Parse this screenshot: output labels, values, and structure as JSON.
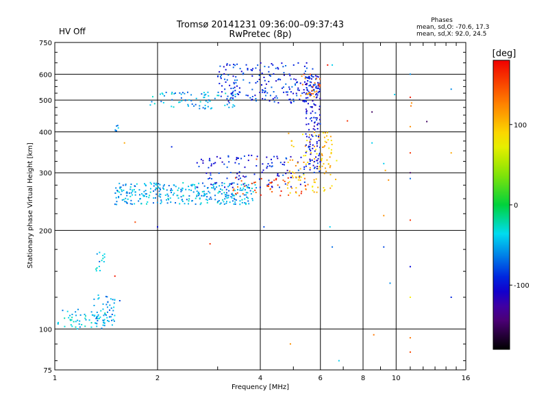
{
  "status": {
    "text": "HV Off",
    "color": "#d00000"
  },
  "stats": {
    "title": "Phases",
    "line1": "mean, sd,O: -70.6, 17.3",
    "line2": "mean, sd,X:  92.0, 24.5"
  },
  "chart_data": {
    "type": "scatter",
    "title": "Tromsø 20141231 09:36:00–09:37:43",
    "subtitle": "RwPretec (8p)",
    "xlabel": "Frequency [MHz]",
    "ylabel": "Stationary phase Virtual Height [km]",
    "x_scale": "log",
    "y_scale": "log",
    "xlim": [
      1,
      16
    ],
    "ylim": [
      75,
      750
    ],
    "x_ticks": [
      1,
      2,
      4,
      6,
      8,
      10,
      16
    ],
    "y_ticks": [
      75,
      100,
      200,
      300,
      400,
      500,
      600,
      750
    ],
    "grid": true,
    "colorbar": {
      "label": "[deg]",
      "range": [
        -180,
        180
      ],
      "ticks": [
        100,
        0,
        -100
      ]
    },
    "series": [
      {
        "x_range": [
          1.02,
          1.5
        ],
        "y_range": [
          100,
          115
        ],
        "phase": -45,
        "count": 70
      },
      {
        "x_range": [
          1.28,
          1.5
        ],
        "y_range": [
          105,
          128
        ],
        "phase": -55,
        "count": 35
      },
      {
        "x_range": [
          1.32,
          1.4
        ],
        "y_range": [
          150,
          175
        ],
        "phase": -50,
        "count": 14
      },
      {
        "x_range": [
          1.5,
          1.56
        ],
        "y_range": [
          400,
          420
        ],
        "phase": -45,
        "count": 6
      },
      {
        "x_range": [
          1.5,
          3.9
        ],
        "y_range": [
          240,
          280
        ],
        "phase": -50,
        "count": 320
      },
      {
        "x_range": [
          2.6,
          5.4
        ],
        "y_range": [
          270,
          340
        ],
        "phase": -95,
        "count": 120
      },
      {
        "x_range": [
          3.3,
          5.6
        ],
        "y_range": [
          255,
          290
        ],
        "phase": 150,
        "count": 45
      },
      {
        "x_range": [
          4.8,
          6.7
        ],
        "y_range": [
          260,
          400
        ],
        "phase": 100,
        "count": 110
      },
      {
        "x_range": [
          5.4,
          6.0
        ],
        "y_range": [
          300,
          600
        ],
        "phase": -100,
        "count": 150
      },
      {
        "x_range": [
          1.9,
          3.4
        ],
        "y_range": [
          470,
          530
        ],
        "phase": -50,
        "count": 80
      },
      {
        "x_range": [
          3.0,
          5.9
        ],
        "y_range": [
          490,
          650
        ],
        "phase": -90,
        "count": 200
      },
      {
        "x_range": [
          5.2,
          6.0
        ],
        "y_range": [
          500,
          600
        ],
        "phase": 130,
        "count": 25
      },
      {
        "points": [
          [
            1.6,
            370,
            110
          ],
          [
            1.72,
            212,
            150
          ],
          [
            2.0,
            205,
            -100
          ],
          [
            2.2,
            360,
            -90
          ],
          [
            2.85,
            182,
            160
          ],
          [
            1.5,
            145,
            170
          ],
          [
            1.55,
            122,
            -80
          ],
          [
            4.1,
            205,
            -80
          ],
          [
            6.4,
            205,
            -40
          ],
          [
            6.5,
            178,
            -70
          ],
          [
            7.2,
            432,
            160
          ],
          [
            6.8,
            80,
            -40
          ],
          [
            6.5,
            640,
            -40
          ],
          [
            6.3,
            640,
            170
          ],
          [
            8.5,
            460,
            -150
          ],
          [
            8.5,
            370,
            -40
          ],
          [
            8.6,
            96,
            130
          ],
          [
            9.2,
            320,
            -40
          ],
          [
            9.3,
            305,
            110
          ],
          [
            9.5,
            285,
            120
          ],
          [
            9.2,
            222,
            120
          ],
          [
            9.2,
            178,
            -80
          ],
          [
            9.6,
            138,
            -60
          ],
          [
            9.9,
            520,
            -40
          ],
          [
            11.0,
            600,
            -60
          ],
          [
            11.0,
            510,
            170
          ],
          [
            11.1,
            490,
            120
          ],
          [
            11.05,
            480,
            130
          ],
          [
            11.0,
            415,
            120
          ],
          [
            11.0,
            345,
            160
          ],
          [
            11.0,
            300,
            -150
          ],
          [
            11.0,
            288,
            -70
          ],
          [
            11.0,
            215,
            160
          ],
          [
            11.0,
            155,
            -100
          ],
          [
            11.0,
            125,
            80
          ],
          [
            11.0,
            94,
            130
          ],
          [
            11.0,
            85,
            150
          ],
          [
            12.3,
            430,
            -150
          ],
          [
            14.5,
            540,
            -60
          ],
          [
            14.5,
            345,
            110
          ],
          [
            14.5,
            125,
            -90
          ],
          [
            4.9,
            90,
            120
          ],
          [
            3.9,
            330,
            150
          ]
        ]
      }
    ]
  }
}
